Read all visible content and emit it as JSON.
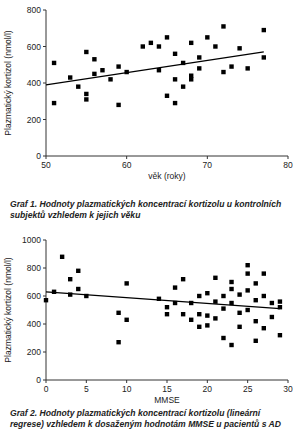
{
  "chart_data": [
    {
      "type": "scatter",
      "title": "Graf 1. Hodnoty plazmatických koncentrací kortizolu u kontrolních subjektů vzhledem k jejich věku",
      "x_label": "věk (roky)",
      "y_label": "Plazmatický kortizol (nmol/l)",
      "xlim": [
        50,
        80
      ],
      "xticks": [
        50,
        60,
        70,
        80
      ],
      "ylim": [
        0,
        800
      ],
      "yticks": [
        0,
        200,
        400,
        600,
        800
      ],
      "grid": false,
      "series": [
        {
          "type": "scatter",
          "marker": "square",
          "color": "#000000",
          "x": [
            51,
            51,
            53,
            54,
            55,
            55,
            55,
            56,
            56,
            57,
            58,
            59,
            59,
            60,
            62,
            63,
            64,
            64,
            65,
            65,
            66,
            66,
            66,
            67,
            67,
            68,
            68,
            68,
            69,
            69,
            70,
            71,
            72,
            72,
            73,
            74,
            75,
            77,
            77
          ],
          "values": [
            510,
            290,
            430,
            380,
            570,
            340,
            310,
            450,
            530,
            470,
            420,
            280,
            490,
            460,
            600,
            620,
            600,
            470,
            650,
            330,
            420,
            290,
            560,
            510,
            380,
            420,
            440,
            620,
            540,
            480,
            650,
            600,
            710,
            460,
            490,
            590,
            480,
            690,
            540
          ]
        },
        {
          "type": "line",
          "line_style": "solid",
          "color": "#000000",
          "x": [
            50,
            77
          ],
          "values": [
            390,
            570
          ]
        }
      ]
    },
    {
      "type": "scatter",
      "title": "Graf 2. Hodnoty plazmatických koncentrací kortizolu (lineární regrese) vzhledem k dosaženým hodnotám MMSE u pacientů s AD",
      "x_label": "MMSE",
      "y_label": "Plazmatický kortizol (nmol/l)",
      "xlim": [
        0,
        30
      ],
      "xticks": [
        0,
        5,
        10,
        15,
        20,
        25,
        30
      ],
      "ylim": [
        0,
        1000
      ],
      "yticks": [
        0,
        200,
        400,
        600,
        800,
        1000
      ],
      "grid": false,
      "series": [
        {
          "type": "scatter",
          "marker": "square",
          "color": "#000000",
          "x": [
            0,
            1,
            2,
            3,
            3,
            4,
            4,
            5,
            9,
            9,
            10,
            10,
            14,
            15,
            15,
            16,
            16,
            17,
            17,
            18,
            18,
            19,
            19,
            19,
            20,
            20,
            20,
            21,
            21,
            21,
            22,
            22,
            22,
            23,
            23,
            23,
            23,
            24,
            24,
            24,
            25,
            25,
            25,
            25,
            26,
            26,
            26,
            26,
            27,
            27,
            27,
            28,
            28,
            29,
            29,
            29
          ],
          "values": [
            570,
            630,
            880,
            610,
            720,
            650,
            780,
            600,
            270,
            480,
            430,
            690,
            580,
            520,
            470,
            660,
            550,
            470,
            720,
            430,
            550,
            600,
            470,
            380,
            460,
            620,
            390,
            730,
            560,
            440,
            300,
            600,
            510,
            650,
            700,
            250,
            550,
            610,
            480,
            380,
            820,
            760,
            500,
            640,
            690,
            570,
            420,
            280,
            600,
            760,
            370,
            450,
            550,
            520,
            320,
            560
          ]
        },
        {
          "type": "line",
          "line_style": "solid",
          "color": "#000000",
          "x": [
            0,
            29
          ],
          "values": [
            630,
            510
          ]
        }
      ]
    }
  ]
}
